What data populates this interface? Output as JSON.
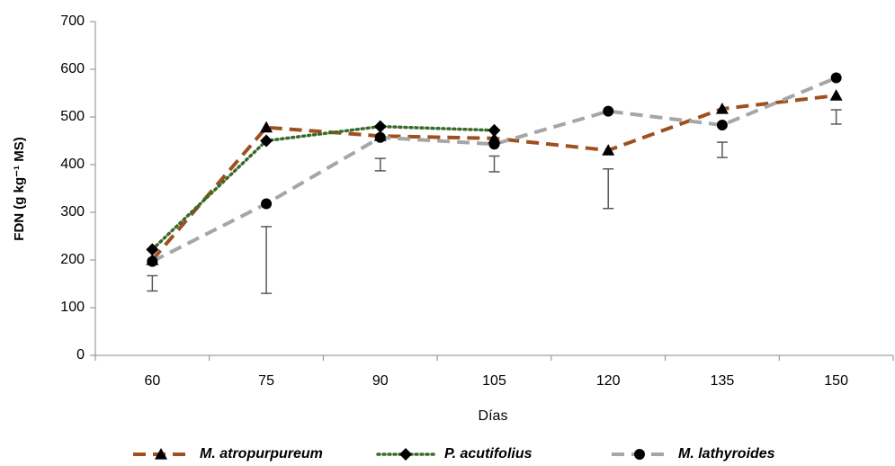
{
  "chart_data": {
    "type": "line",
    "xlabel": "Días",
    "ylabel": "FDN (g kg⁻¹ MS)",
    "categories": [
      "60",
      "75",
      "90",
      "105",
      "120",
      "135",
      "150"
    ],
    "series": [
      {
        "name": "M. atropurpureum",
        "color": "#a0501e",
        "dash": "dashed",
        "marker": "triangle",
        "values": [
          200,
          478,
          460,
          455,
          430,
          517,
          545
        ]
      },
      {
        "name": "P. acutifolius",
        "color": "#3a6b2a",
        "dash": "dotted",
        "marker": "diamond",
        "values": [
          222,
          450,
          480,
          472,
          null,
          null,
          null
        ]
      },
      {
        "name": "M. lathyroides",
        "color": "#a6a6a6",
        "dash": "dashed",
        "marker": "circle",
        "values": [
          197,
          318,
          457,
          443,
          512,
          483,
          582
        ]
      }
    ],
    "error_bars": {
      "color": "#595959",
      "low": [
        135,
        130,
        387,
        385,
        308,
        415,
        485
      ],
      "high": [
        167,
        270,
        413,
        418,
        391,
        447,
        515
      ]
    },
    "ylim": [
      0,
      700
    ],
    "yticks": [
      0,
      100,
      200,
      300,
      400,
      500,
      600,
      700
    ],
    "legend": "bottom"
  }
}
